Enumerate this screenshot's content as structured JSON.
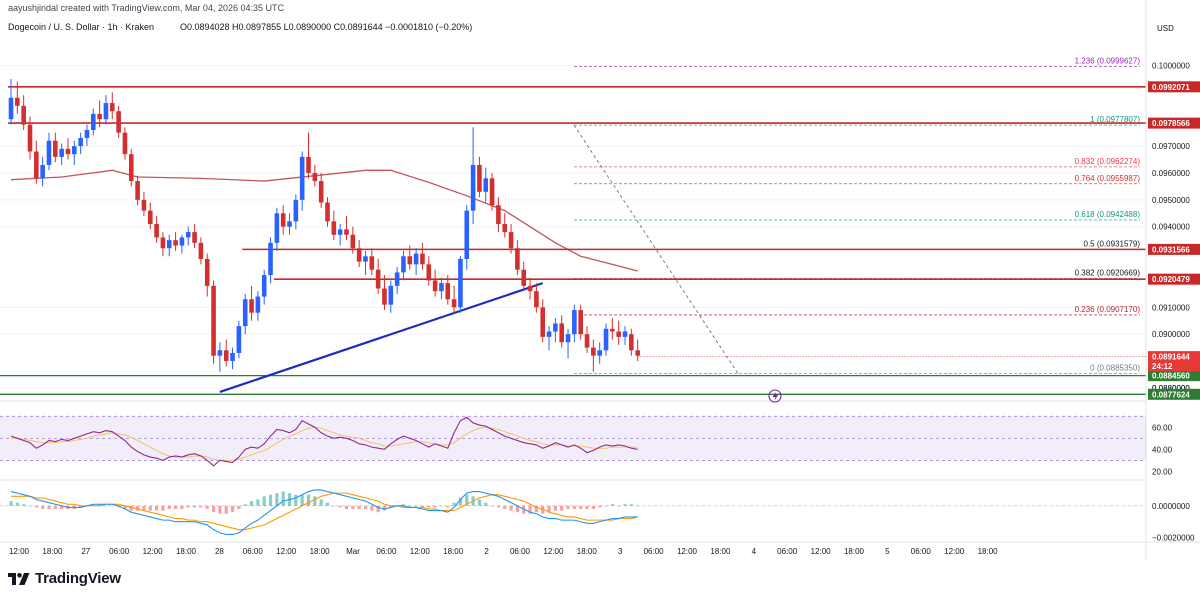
{
  "credit": "aayushjindal created with TradingView.com, Mar 04, 2026 04:35 UTC",
  "header": {
    "symbol": "Dogecoin / U. S. Dollar · 1h · Kraken",
    "ohlc": "O0.0894028  H0.0897855  L0.0890000  C0.0891644  −0.0001810 (−0.20%)"
  },
  "currency": "USD",
  "brand": "TradingView",
  "colors": {
    "bull": "#2962ff",
    "bear": "#d32f2f",
    "resistance": "#c62828",
    "support": "#2e7d32",
    "trendline": "#1a2fbf",
    "ma": "#c8535a",
    "rsi_line": "#8e2b8e",
    "rsi_signal": "#f5c06a",
    "macd_line": "#2196f3",
    "macd_signal": "#ff9800"
  },
  "chart_data": {
    "type": "candlestick",
    "ylim": [
      0.08755,
      0.10095
    ],
    "y_ticks": [
      "0.1000000",
      "0.0970000",
      "0.0960000",
      "0.0950000",
      "0.0940000",
      "0.0910000",
      "0.0900000",
      "0.0880000"
    ],
    "x_labels": [
      "12:00",
      "18:00",
      "27",
      "06:00",
      "12:00",
      "18:00",
      "28",
      "06:00",
      "12:00",
      "18:00",
      "Mar",
      "06:00",
      "12:00",
      "18:00",
      "2",
      "06:00",
      "12:00",
      "18:00",
      "3",
      "06:00",
      "12:00",
      "18:00",
      "4",
      "06:00",
      "12:00",
      "18:00",
      "5",
      "06:00",
      "12:00",
      "18:00"
    ],
    "candles": [
      [
        0.098,
        0.0995,
        0.0978,
        0.0988
      ],
      [
        0.0988,
        0.0994,
        0.0982,
        0.0985
      ],
      [
        0.0985,
        0.0989,
        0.0976,
        0.0978
      ],
      [
        0.0978,
        0.0981,
        0.0965,
        0.0968
      ],
      [
        0.0968,
        0.0972,
        0.0956,
        0.0958
      ],
      [
        0.0958,
        0.0966,
        0.0955,
        0.0963
      ],
      [
        0.0963,
        0.0975,
        0.0961,
        0.0972
      ],
      [
        0.0972,
        0.0975,
        0.0964,
        0.0966
      ],
      [
        0.0966,
        0.0971,
        0.0963,
        0.0969
      ],
      [
        0.0969,
        0.0973,
        0.0965,
        0.0967
      ],
      [
        0.0967,
        0.0972,
        0.0963,
        0.097
      ],
      [
        0.097,
        0.0975,
        0.0967,
        0.0973
      ],
      [
        0.0973,
        0.0978,
        0.097,
        0.0976
      ],
      [
        0.0976,
        0.0984,
        0.0974,
        0.0982
      ],
      [
        0.0982,
        0.0987,
        0.0977,
        0.098
      ],
      [
        0.098,
        0.0989,
        0.0978,
        0.0986
      ],
      [
        0.0986,
        0.099,
        0.098,
        0.0983
      ],
      [
        0.0983,
        0.0985,
        0.0973,
        0.0975
      ],
      [
        0.0975,
        0.0977,
        0.0965,
        0.0967
      ],
      [
        0.0967,
        0.0969,
        0.0955,
        0.0957
      ],
      [
        0.0957,
        0.0959,
        0.0948,
        0.095
      ],
      [
        0.095,
        0.0953,
        0.0944,
        0.0946
      ],
      [
        0.0946,
        0.0949,
        0.0939,
        0.0941
      ],
      [
        0.0941,
        0.0944,
        0.0934,
        0.0936
      ],
      [
        0.0936,
        0.0938,
        0.0929,
        0.0932
      ],
      [
        0.0932,
        0.0937,
        0.0929,
        0.0935
      ],
      [
        0.0935,
        0.0938,
        0.0931,
        0.0933
      ],
      [
        0.0933,
        0.0937,
        0.093,
        0.0936
      ],
      [
        0.0936,
        0.094,
        0.0933,
        0.0938
      ],
      [
        0.0938,
        0.0941,
        0.0932,
        0.0934
      ],
      [
        0.0934,
        0.0936,
        0.0926,
        0.0928
      ],
      [
        0.0928,
        0.093,
        0.0914,
        0.0918
      ],
      [
        0.0918,
        0.092,
        0.0889,
        0.0892
      ],
      [
        0.0892,
        0.0897,
        0.0886,
        0.0894
      ],
      [
        0.0894,
        0.0898,
        0.0888,
        0.089
      ],
      [
        0.089,
        0.0895,
        0.0887,
        0.0893
      ],
      [
        0.0893,
        0.0905,
        0.0891,
        0.0903
      ],
      [
        0.0903,
        0.0915,
        0.09,
        0.0913
      ],
      [
        0.0913,
        0.0918,
        0.0905,
        0.0908
      ],
      [
        0.0908,
        0.0916,
        0.0905,
        0.0914
      ],
      [
        0.0914,
        0.0924,
        0.0911,
        0.0922
      ],
      [
        0.0922,
        0.0936,
        0.0919,
        0.0934
      ],
      [
        0.0934,
        0.0947,
        0.0931,
        0.0945
      ],
      [
        0.0945,
        0.0948,
        0.0937,
        0.094
      ],
      [
        0.094,
        0.0945,
        0.0937,
        0.0942
      ],
      [
        0.0942,
        0.0952,
        0.0939,
        0.095
      ],
      [
        0.095,
        0.0968,
        0.0946,
        0.0966
      ],
      [
        0.0966,
        0.0975,
        0.0958,
        0.096
      ],
      [
        0.096,
        0.0963,
        0.0955,
        0.0957
      ],
      [
        0.0957,
        0.096,
        0.0947,
        0.0949
      ],
      [
        0.0949,
        0.0951,
        0.094,
        0.0942
      ],
      [
        0.0942,
        0.0946,
        0.0935,
        0.0937
      ],
      [
        0.0937,
        0.0941,
        0.0933,
        0.0939
      ],
      [
        0.0939,
        0.0944,
        0.0935,
        0.0937
      ],
      [
        0.0937,
        0.094,
        0.093,
        0.0932
      ],
      [
        0.0932,
        0.0935,
        0.0925,
        0.0927
      ],
      [
        0.0927,
        0.0931,
        0.0922,
        0.0929
      ],
      [
        0.0929,
        0.0932,
        0.0922,
        0.0924
      ],
      [
        0.0924,
        0.0928,
        0.0915,
        0.0917
      ],
      [
        0.0917,
        0.0922,
        0.0909,
        0.0911
      ],
      [
        0.0911,
        0.092,
        0.0908,
        0.0918
      ],
      [
        0.0918,
        0.0925,
        0.0915,
        0.0923
      ],
      [
        0.0923,
        0.0931,
        0.092,
        0.0929
      ],
      [
        0.0929,
        0.0933,
        0.0924,
        0.0926
      ],
      [
        0.0926,
        0.0932,
        0.0922,
        0.093
      ],
      [
        0.093,
        0.0934,
        0.0924,
        0.0926
      ],
      [
        0.0926,
        0.0929,
        0.0918,
        0.092
      ],
      [
        0.092,
        0.0924,
        0.0914,
        0.0916
      ],
      [
        0.0916,
        0.0921,
        0.0913,
        0.0919
      ],
      [
        0.0919,
        0.0922,
        0.0911,
        0.0913
      ],
      [
        0.0913,
        0.0918,
        0.0908,
        0.091
      ],
      [
        0.091,
        0.0929,
        0.0908,
        0.0928
      ],
      [
        0.0928,
        0.0948,
        0.0924,
        0.0946
      ],
      [
        0.0946,
        0.0977,
        0.0941,
        0.0963
      ],
      [
        0.0963,
        0.0966,
        0.0951,
        0.0953
      ],
      [
        0.0953,
        0.0962,
        0.0949,
        0.0958
      ],
      [
        0.0958,
        0.096,
        0.0946,
        0.0948
      ],
      [
        0.0948,
        0.0951,
        0.0938,
        0.0941
      ],
      [
        0.0941,
        0.0945,
        0.0936,
        0.0938
      ],
      [
        0.0938,
        0.0941,
        0.093,
        0.0932
      ],
      [
        0.0932,
        0.0935,
        0.0922,
        0.0924
      ],
      [
        0.0924,
        0.0927,
        0.0916,
        0.0918
      ],
      [
        0.0918,
        0.0921,
        0.0913,
        0.0916
      ],
      [
        0.0916,
        0.0919,
        0.0908,
        0.091
      ],
      [
        0.091,
        0.0913,
        0.0897,
        0.0899
      ],
      [
        0.0899,
        0.0903,
        0.0894,
        0.0901
      ],
      [
        0.0901,
        0.0906,
        0.0897,
        0.0904
      ],
      [
        0.0904,
        0.0907,
        0.0895,
        0.0897
      ],
      [
        0.0897,
        0.0902,
        0.0891,
        0.09
      ],
      [
        0.09,
        0.0911,
        0.0897,
        0.0909
      ],
      [
        0.0909,
        0.0911,
        0.0898,
        0.09
      ],
      [
        0.09,
        0.0903,
        0.0893,
        0.0895
      ],
      [
        0.0895,
        0.0898,
        0.0886,
        0.0892
      ],
      [
        0.0892,
        0.0897,
        0.0889,
        0.0894
      ],
      [
        0.0894,
        0.0904,
        0.0892,
        0.0902
      ],
      [
        0.0902,
        0.0906,
        0.0898,
        0.0901
      ],
      [
        0.0901,
        0.0905,
        0.0896,
        0.0899
      ],
      [
        0.0899,
        0.0903,
        0.0896,
        0.0901
      ],
      [
        0.09,
        0.0902,
        0.0892,
        0.0894
      ],
      [
        0.0894,
        0.0898,
        0.089,
        0.0892
      ]
    ],
    "moving_average": [
      [
        0,
        0.09575
      ],
      [
        8,
        0.09585
      ],
      [
        16,
        0.0961
      ],
      [
        20,
        0.09585
      ],
      [
        30,
        0.0958
      ],
      [
        40,
        0.0957
      ],
      [
        48,
        0.0959
      ],
      [
        56,
        0.0961
      ],
      [
        60,
        0.0961
      ],
      [
        66,
        0.09565
      ],
      [
        72,
        0.09515
      ],
      [
        78,
        0.0946
      ],
      [
        82,
        0.094
      ],
      [
        86,
        0.0934
      ],
      [
        90,
        0.0929
      ],
      [
        95,
        0.0926
      ],
      [
        99,
        0.09235
      ]
    ],
    "fib_levels": [
      {
        "label": "1.236 (0.0999627)",
        "value": 0.0999627,
        "color": "#9c27b0"
      },
      {
        "label": "1 (0.0977807)",
        "value": 0.0977807,
        "color": "#089981"
      },
      {
        "label": "0.832 (0.0962274)",
        "value": 0.0962274,
        "color": "#f23645"
      },
      {
        "label": "0.764 (0.0955987)",
        "value": 0.0955987,
        "color": "#d32f2f"
      },
      {
        "label": "0.618 (0.0942488)",
        "value": 0.0942488,
        "color": "#089981"
      },
      {
        "label": "0.5 (0.0931579)",
        "value": 0.0931579,
        "color": "#131722"
      },
      {
        "label": "0.382 (0.0920669)",
        "value": 0.0920669,
        "color": "#131722"
      },
      {
        "label": "0.236 (0.0907170)",
        "value": 0.090717,
        "color": "#b22833"
      },
      {
        "label": "0 (0.0885350)",
        "value": 0.088535,
        "color": "#787b86"
      }
    ],
    "resistance_lines": [
      {
        "value": 0.0992071,
        "label": "0.0992071",
        "from": 0
      },
      {
        "value": 0.0978566,
        "label": "0.0978566",
        "from": 0
      },
      {
        "value": 0.0931566,
        "label": "0.0931566",
        "from": 37
      },
      {
        "value": 0.0920479,
        "label": "0.0920479",
        "from": 42
      }
    ],
    "support_lines": [
      {
        "value": 0.088456,
        "label": "0.0884560"
      },
      {
        "value": 0.0877624,
        "label": "0.0877624"
      }
    ],
    "hidden_tick": "0.0880000",
    "trendline": [
      [
        33,
        0.08785
      ],
      [
        84,
        0.0919
      ]
    ],
    "current_price": {
      "value": 0.0891644,
      "label": "0.0891644",
      "countdown": "24:12"
    },
    "rsi": {
      "ticks": [
        "60.00",
        "40.00",
        "20.00"
      ],
      "ylim": [
        14,
        82
      ],
      "band": [
        30,
        70
      ],
      "values": [
        52,
        50,
        48,
        46,
        41,
        44,
        48,
        47,
        49,
        48,
        50,
        52,
        54,
        56,
        55,
        57,
        56,
        52,
        48,
        42,
        38,
        35,
        33,
        32,
        30,
        33,
        34,
        33,
        35,
        36,
        34,
        30,
        25,
        30,
        29,
        28,
        33,
        40,
        42,
        41,
        45,
        52,
        58,
        57,
        55,
        58,
        66,
        63,
        60,
        55,
        52,
        50,
        51,
        50,
        48,
        45,
        44,
        42,
        41,
        40,
        45,
        49,
        52,
        50,
        48,
        45,
        42,
        45,
        43,
        41,
        55,
        66,
        69,
        64,
        62,
        61,
        58,
        55,
        52,
        50,
        48,
        46,
        45,
        44,
        41,
        43,
        46,
        44,
        42,
        44,
        41,
        37,
        39,
        42,
        44,
        43,
        44,
        43,
        41,
        40
      ],
      "signal": [
        50,
        50,
        49,
        48,
        47,
        46,
        46,
        46,
        47,
        47,
        48,
        49,
        50,
        52,
        53,
        54,
        55,
        54,
        53,
        51,
        48,
        45,
        42,
        39,
        36,
        34,
        33,
        33,
        33,
        34,
        34,
        33,
        31,
        30,
        30,
        30,
        31,
        33,
        35,
        37,
        39,
        42,
        46,
        49,
        52,
        54,
        57,
        59,
        60,
        59,
        57,
        55,
        53,
        52,
        51,
        50,
        48,
        46,
        45,
        43,
        43,
        44,
        45,
        46,
        47,
        47,
        46,
        45,
        44,
        44,
        46,
        50,
        54,
        57,
        59,
        60,
        59,
        58,
        56,
        54,
        52,
        50,
        48,
        47,
        45,
        44,
        44,
        44,
        43,
        43,
        43,
        42,
        41,
        41,
        41,
        42,
        42,
        42,
        42,
        42
      ]
    },
    "macd": {
      "ticks": [
        "0.0000000",
        "−0.0020000"
      ],
      "ylim": [
        -0.00215,
        0.0015
      ],
      "macd": [
        0.0009,
        0.0008,
        0.0007,
        0.0006,
        0.0004,
        0.0003,
        0.0002,
        0.0001,
        0.0,
        -0.0001,
        -0.0001,
        -0.0001,
        0.0,
        0.0001,
        0.0001,
        0.0001,
        0.0001,
        0.0,
        -0.0002,
        -0.0004,
        -0.0005,
        -0.0006,
        -0.0007,
        -0.0008,
        -0.0009,
        -0.0009,
        -0.001,
        -0.001,
        -0.001,
        -0.001,
        -0.0011,
        -0.0012,
        -0.0015,
        -0.0017,
        -0.0018,
        -0.0018,
        -0.0017,
        -0.0014,
        -0.0011,
        -0.0009,
        -0.0006,
        -0.0003,
        0.0,
        0.0003,
        0.0004,
        0.0005,
        0.0007,
        0.0009,
        0.001,
        0.001,
        0.0009,
        0.0008,
        0.0007,
        0.0006,
        0.0005,
        0.0004,
        0.0003,
        0.0001,
        -0.0001,
        -0.0002,
        -0.0001,
        0.0,
        0.0,
        -0.0001,
        -0.0001,
        -0.0002,
        -0.0003,
        -0.0003,
        -0.0003,
        -0.0004,
        -0.0001,
        0.0004,
        0.0008,
        0.0009,
        0.0009,
        0.0008,
        0.0007,
        0.0006,
        0.0004,
        0.0002,
        0.0,
        -0.0002,
        -0.0004,
        -0.0005,
        -0.0007,
        -0.0008,
        -0.0008,
        -0.0009,
        -0.0009,
        -0.0009,
        -0.001,
        -0.0011,
        -0.0011,
        -0.001,
        -0.0009,
        -0.0008,
        -0.0008,
        -0.0007,
        -0.0007,
        -0.0007
      ],
      "signal": [
        0.0006,
        0.0006,
        0.0006,
        0.0006,
        0.0005,
        0.0005,
        0.0004,
        0.0003,
        0.0002,
        0.0001,
        0.0001,
        0.0,
        0.0,
        0.0,
        0.0,
        0.0001,
        0.0001,
        0.0001,
        0.0,
        -0.0001,
        -0.0002,
        -0.0003,
        -0.0004,
        -0.0005,
        -0.0006,
        -0.0007,
        -0.0008,
        -0.0008,
        -0.0009,
        -0.0009,
        -0.001,
        -0.001,
        -0.0011,
        -0.0012,
        -0.0013,
        -0.0014,
        -0.0015,
        -0.0015,
        -0.0014,
        -0.0013,
        -0.0012,
        -0.001,
        -0.0008,
        -0.0006,
        -0.0004,
        -0.0002,
        0.0,
        0.0002,
        0.0004,
        0.0006,
        0.0007,
        0.0008,
        0.0008,
        0.0008,
        0.0007,
        0.0006,
        0.0005,
        0.0004,
        0.0003,
        0.0001,
        0.0,
        0.0,
        -0.0001,
        -0.0001,
        -0.0001,
        -0.0001,
        -0.0002,
        -0.0002,
        -0.0003,
        -0.0003,
        -0.0003,
        -0.0001,
        0.0001,
        0.0003,
        0.0005,
        0.0006,
        0.0007,
        0.0007,
        0.0006,
        0.0005,
        0.0004,
        0.0003,
        0.0001,
        -0.0001,
        -0.0002,
        -0.0004,
        -0.0005,
        -0.0006,
        -0.0007,
        -0.0007,
        -0.0008,
        -0.0009,
        -0.0009,
        -0.0009,
        -0.0009,
        -0.0009,
        -0.0008,
        -0.0008,
        -0.0008,
        -0.0007
      ]
    }
  }
}
